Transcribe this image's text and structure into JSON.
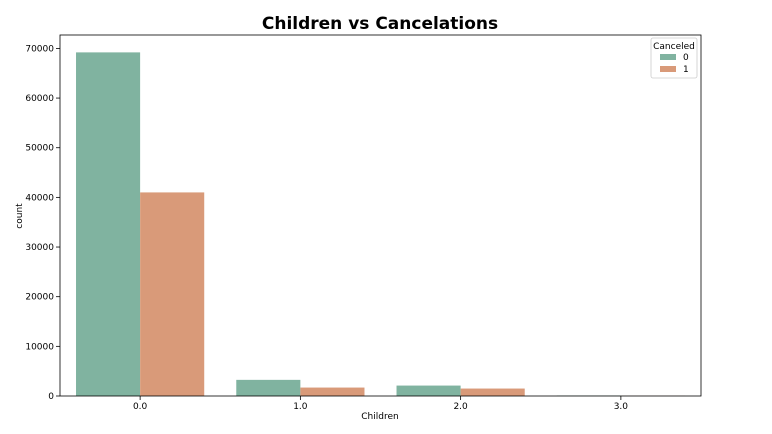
{
  "chart_data": {
    "type": "bar",
    "title": "Children vs Cancelations",
    "xlabel": "Children",
    "ylabel": "count",
    "categories": [
      "0.0",
      "1.0",
      "2.0",
      "3.0"
    ],
    "series": [
      {
        "name": "0",
        "values": [
          69200,
          3250,
          2100,
          80
        ],
        "color": "#80b3a0"
      },
      {
        "name": "1",
        "values": [
          41000,
          1700,
          1500,
          30
        ],
        "color": "#d99a79"
      }
    ],
    "ylim": [
      0,
      72700
    ],
    "yticks": [
      0,
      10000,
      20000,
      30000,
      40000,
      50000,
      60000,
      70000
    ],
    "legend": {
      "title": "Canceled",
      "position": "top-right"
    },
    "grid": false
  }
}
